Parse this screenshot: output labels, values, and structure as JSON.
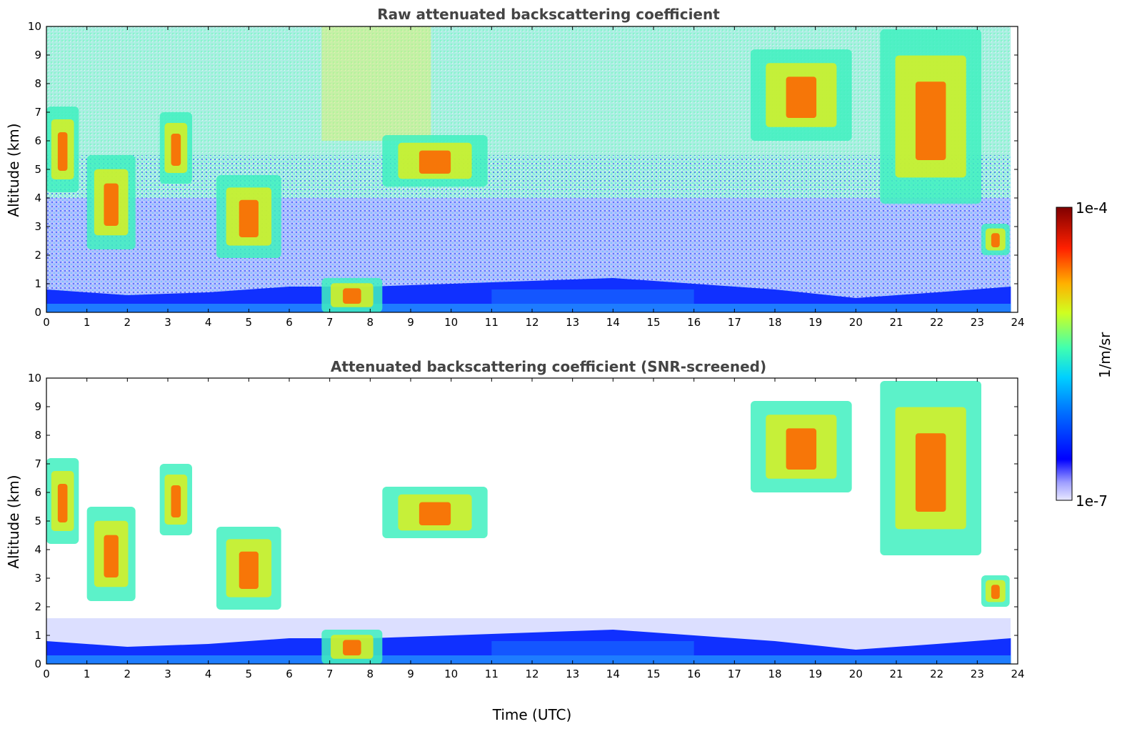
{
  "chart_data": [
    {
      "type": "heatmap",
      "title": "Raw attenuated backscattering coefficient",
      "xlabel": "",
      "ylabel": "Altitude (km)",
      "xlim": [
        0,
        24
      ],
      "ylim": [
        0,
        10
      ],
      "x_ticks": [
        "0",
        "1",
        "2",
        "3",
        "4",
        "5",
        "6",
        "7",
        "8",
        "9",
        "10",
        "11",
        "12",
        "13",
        "14",
        "15",
        "16",
        "17",
        "18",
        "19",
        "20",
        "21",
        "22",
        "23",
        "24"
      ],
      "y_ticks": [
        "0",
        "1",
        "2",
        "3",
        "4",
        "5",
        "6",
        "7",
        "8",
        "9",
        "10"
      ],
      "screened": false
    },
    {
      "type": "heatmap",
      "title": "Attenuated backscattering coefficient (SNR-screened)",
      "xlabel": "Time (UTC)",
      "ylabel": "Altitude (km)",
      "xlim": [
        0,
        24
      ],
      "ylim": [
        0,
        10
      ],
      "x_ticks": [
        "0",
        "1",
        "2",
        "3",
        "4",
        "5",
        "6",
        "7",
        "8",
        "9",
        "10",
        "11",
        "12",
        "13",
        "14",
        "15",
        "16",
        "17",
        "18",
        "19",
        "20",
        "21",
        "22",
        "23",
        "24"
      ],
      "y_ticks": [
        "0",
        "1",
        "2",
        "3",
        "4",
        "5",
        "6",
        "7",
        "8",
        "9",
        "10"
      ],
      "screened": true
    }
  ],
  "colorbar": {
    "label": "1/m/sr",
    "max_label": "1e-4",
    "min_label": "1e-7",
    "scale": "log",
    "range": [
      1e-07,
      0.0001
    ],
    "colormap": "jet",
    "colors": [
      "#e0e0ff",
      "#0000ff",
      "#00a0ff",
      "#30ffd0",
      "#c0ff30",
      "#ffb000",
      "#ff2000",
      "#800000"
    ]
  },
  "features": {
    "boundary_layer": [
      [
        0,
        0.8
      ],
      [
        2,
        0.6
      ],
      [
        4,
        0.7
      ],
      [
        6,
        0.9
      ],
      [
        8,
        0.9
      ],
      [
        10,
        1.0
      ],
      [
        12,
        1.1
      ],
      [
        14,
        1.2
      ],
      [
        16,
        1.0
      ],
      [
        18,
        0.8
      ],
      [
        20,
        0.5
      ],
      [
        22,
        0.7
      ],
      [
        24,
        0.9
      ]
    ],
    "clouds": [
      {
        "t": [
          0.0,
          0.8
        ],
        "z": [
          4.2,
          7.2
        ]
      },
      {
        "t": [
          1.0,
          2.2
        ],
        "z": [
          2.2,
          5.5
        ]
      },
      {
        "t": [
          2.8,
          3.6
        ],
        "z": [
          4.5,
          7.0
        ]
      },
      {
        "t": [
          4.2,
          5.8
        ],
        "z": [
          1.9,
          4.8
        ]
      },
      {
        "t": [
          6.8,
          8.3
        ],
        "z": [
          0.0,
          1.2
        ]
      },
      {
        "t": [
          8.3,
          10.9
        ],
        "z": [
          4.4,
          6.2
        ]
      },
      {
        "t": [
          17.4,
          19.9
        ],
        "z": [
          6.0,
          9.2
        ]
      },
      {
        "t": [
          20.6,
          23.1
        ],
        "z": [
          3.8,
          9.9
        ]
      },
      {
        "t": [
          23.1,
          23.8
        ],
        "z": [
          2.0,
          3.1
        ]
      }
    ]
  }
}
